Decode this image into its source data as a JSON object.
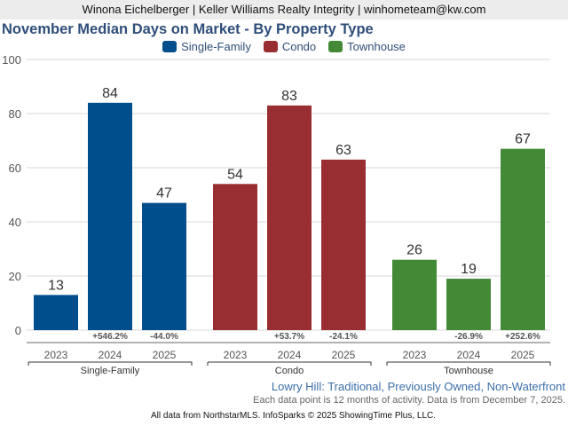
{
  "header": {
    "agent_line": "Winona Eichelberger | Keller Williams Realty Integrity | winhometeam@kw.com"
  },
  "colors": {
    "single_family": "#004e8c",
    "condo": "#982e31",
    "townhouse": "#448a36"
  },
  "chart_data": {
    "type": "bar",
    "title": "November Median Days on Market - By Property Type",
    "xlabel": "",
    "ylabel": "",
    "ylim": [
      0,
      100
    ],
    "yticks": [
      0,
      20,
      40,
      60,
      80,
      100
    ],
    "grid": true,
    "legend_position": "top-center",
    "legend": [
      "Single-Family",
      "Condo",
      "Townhouse"
    ],
    "groups": [
      {
        "name": "Single-Family",
        "color": "#004e8c",
        "categories": [
          "2023",
          "2024",
          "2025"
        ],
        "values": [
          13,
          84,
          47
        ],
        "changes": [
          "",
          "+546.2%",
          "-44.0%"
        ]
      },
      {
        "name": "Condo",
        "color": "#982e31",
        "categories": [
          "2023",
          "2024",
          "2025"
        ],
        "values": [
          54,
          83,
          63
        ],
        "changes": [
          "",
          "+53.7%",
          "-24.1%"
        ]
      },
      {
        "name": "Townhouse",
        "color": "#448a36",
        "categories": [
          "2023",
          "2024",
          "2025"
        ],
        "values": [
          26,
          19,
          67
        ],
        "changes": [
          "",
          "-26.9%",
          "+252.6%"
        ]
      }
    ]
  },
  "footer": {
    "subtitle": "Lowry Hill: Traditional, Previously Owned, Non-Waterfront",
    "note": "Each data point is 12 months of activity. Data is from December 7, 2025.",
    "credit": "All data from NorthstarMLS. InfoSparks © 2025 ShowingTime Plus, LLC."
  }
}
